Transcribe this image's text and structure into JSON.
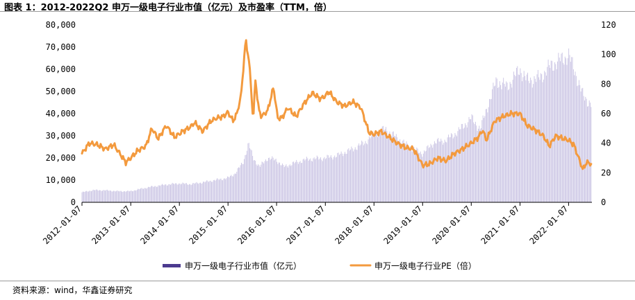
{
  "figure": {
    "title": "图表 1：2012-2022Q2 申万一级电子行业市值（亿元）及市盈率（TTM，倍）",
    "source": "资料来源：wind，华鑫证券研究"
  },
  "colors": {
    "bar": "#c9c3e3",
    "legend_bar": "#4b3a8f",
    "line": "#f39a3e",
    "axis": "#000000"
  },
  "chart_data": {
    "type": "bar+line",
    "x_ticks": [
      "2012-01-07",
      "2013-01-07",
      "2014-01-07",
      "2015-01-07",
      "2016-01-07",
      "2017-01-07",
      "2018-01-07",
      "2019-01-07",
      "2020-01-07",
      "2021-01-07",
      "2022-01-07"
    ],
    "y_left": {
      "lim": [
        0,
        80000
      ],
      "ticks": [
        "0",
        "10,000",
        "20,000",
        "30,000",
        "40,000",
        "50,000",
        "60,000",
        "70,000",
        "80,000"
      ]
    },
    "y_right": {
      "lim": [
        0,
        120
      ],
      "ticks": [
        "0",
        "20",
        "40",
        "60",
        "80",
        "100",
        "120"
      ]
    },
    "series": [
      {
        "name": "申万一级电子行业市值（亿元）",
        "type": "bar",
        "axis": "left",
        "points": [
          [
            "2012-01-07",
            4500
          ],
          [
            "2012-04-01",
            5500
          ],
          [
            "2012-07-01",
            5400
          ],
          [
            "2012-10-01",
            5000
          ],
          [
            "2013-01-07",
            5000
          ],
          [
            "2013-04-01",
            6200
          ],
          [
            "2013-07-01",
            7200
          ],
          [
            "2013-10-01",
            8000
          ],
          [
            "2014-01-07",
            8500
          ],
          [
            "2014-04-01",
            8200
          ],
          [
            "2014-07-01",
            9000
          ],
          [
            "2014-10-01",
            10000
          ],
          [
            "2015-01-07",
            11000
          ],
          [
            "2015-03-01",
            13000
          ],
          [
            "2015-05-01",
            18000
          ],
          [
            "2015-06-10",
            26500
          ],
          [
            "2015-07-15",
            20000
          ],
          [
            "2015-09-01",
            16000
          ],
          [
            "2015-11-01",
            20000
          ],
          [
            "2016-01-07",
            19000
          ],
          [
            "2016-03-01",
            16000
          ],
          [
            "2016-06-01",
            18000
          ],
          [
            "2016-09-01",
            19500
          ],
          [
            "2017-01-07",
            20000
          ],
          [
            "2017-04-01",
            21000
          ],
          [
            "2017-08-01",
            24000
          ],
          [
            "2017-11-01",
            27000
          ],
          [
            "2018-01-07",
            31000
          ],
          [
            "2018-04-01",
            33000
          ],
          [
            "2018-07-01",
            29000
          ],
          [
            "2018-10-01",
            25000
          ],
          [
            "2019-01-07",
            22000
          ],
          [
            "2019-04-01",
            27000
          ],
          [
            "2019-07-01",
            28000
          ],
          [
            "2019-10-01",
            32000
          ],
          [
            "2020-01-07",
            38000
          ],
          [
            "2020-03-15",
            33000
          ],
          [
            "2020-05-01",
            42000
          ],
          [
            "2020-07-15",
            55000
          ],
          [
            "2020-10-01",
            52000
          ],
          [
            "2021-01-07",
            60000
          ],
          [
            "2021-03-01",
            55000
          ],
          [
            "2021-06-01",
            56000
          ],
          [
            "2021-09-01",
            62000
          ],
          [
            "2021-12-01",
            65000
          ],
          [
            "2022-01-07",
            66500
          ],
          [
            "2022-03-01",
            58000
          ],
          [
            "2022-04-25",
            48000
          ],
          [
            "2022-06-30",
            44000
          ]
        ]
      },
      {
        "name": "申万一级电子行业PE（倍）",
        "type": "line",
        "axis": "right",
        "points": [
          [
            "2012-01-07",
            33
          ],
          [
            "2012-03-01",
            40
          ],
          [
            "2012-05-01",
            39
          ],
          [
            "2012-07-01",
            36
          ],
          [
            "2012-09-01",
            39
          ],
          [
            "2012-11-01",
            31
          ],
          [
            "2012-12-01",
            27
          ],
          [
            "2013-01-07",
            30
          ],
          [
            "2013-03-01",
            35
          ],
          [
            "2013-05-01",
            38
          ],
          [
            "2013-06-15",
            50
          ],
          [
            "2013-08-01",
            43
          ],
          [
            "2013-10-01",
            52
          ],
          [
            "2013-12-01",
            44
          ],
          [
            "2014-02-01",
            48
          ],
          [
            "2014-04-01",
            51
          ],
          [
            "2014-05-01",
            54
          ],
          [
            "2014-07-01",
            48
          ],
          [
            "2014-09-01",
            55
          ],
          [
            "2014-10-15",
            57
          ],
          [
            "2014-12-01",
            58
          ],
          [
            "2015-01-07",
            61
          ],
          [
            "2015-02-15",
            55
          ],
          [
            "2015-03-15",
            60
          ],
          [
            "2015-04-15",
            72
          ],
          [
            "2015-05-20",
            110
          ],
          [
            "2015-06-15",
            95
          ],
          [
            "2015-07-01",
            75
          ],
          [
            "2015-07-15",
            55
          ],
          [
            "2015-08-01",
            83
          ],
          [
            "2015-08-25",
            63
          ],
          [
            "2015-09-15",
            58
          ],
          [
            "2015-11-01",
            62
          ],
          [
            "2015-12-15",
            78
          ],
          [
            "2016-01-15",
            57
          ],
          [
            "2016-02-15",
            57
          ],
          [
            "2016-04-01",
            64
          ],
          [
            "2016-06-01",
            58
          ],
          [
            "2016-08-01",
            67
          ],
          [
            "2016-10-01",
            74
          ],
          [
            "2016-12-01",
            70
          ],
          [
            "2017-01-07",
            72
          ],
          [
            "2017-02-01",
            75
          ],
          [
            "2017-04-01",
            68
          ],
          [
            "2017-06-01",
            65
          ],
          [
            "2017-08-01",
            68
          ],
          [
            "2017-10-01",
            64
          ],
          [
            "2017-12-01",
            47
          ],
          [
            "2018-01-07",
            46
          ],
          [
            "2018-03-01",
            48
          ],
          [
            "2018-05-01",
            44
          ],
          [
            "2018-07-01",
            40
          ],
          [
            "2018-09-01",
            37
          ],
          [
            "2018-11-01",
            36
          ],
          [
            "2019-01-07",
            25
          ],
          [
            "2019-03-01",
            26
          ],
          [
            "2019-05-01",
            30
          ],
          [
            "2019-07-01",
            28
          ],
          [
            "2019-09-01",
            33
          ],
          [
            "2019-11-01",
            36
          ],
          [
            "2020-01-07",
            40
          ],
          [
            "2020-03-01",
            44
          ],
          [
            "2020-04-01",
            49
          ],
          [
            "2020-05-01",
            42
          ],
          [
            "2020-07-01",
            55
          ],
          [
            "2020-09-01",
            58
          ],
          [
            "2020-11-01",
            60
          ],
          [
            "2021-01-07",
            60
          ],
          [
            "2021-03-01",
            52
          ],
          [
            "2021-05-01",
            49
          ],
          [
            "2021-07-01",
            45
          ],
          [
            "2021-08-15",
            38
          ],
          [
            "2021-10-01",
            45
          ],
          [
            "2021-12-01",
            43
          ],
          [
            "2022-01-07",
            42
          ],
          [
            "2022-02-15",
            39
          ],
          [
            "2022-03-15",
            32
          ],
          [
            "2022-04-25",
            22
          ],
          [
            "2022-05-20",
            27
          ],
          [
            "2022-06-30",
            26
          ]
        ]
      }
    ]
  }
}
